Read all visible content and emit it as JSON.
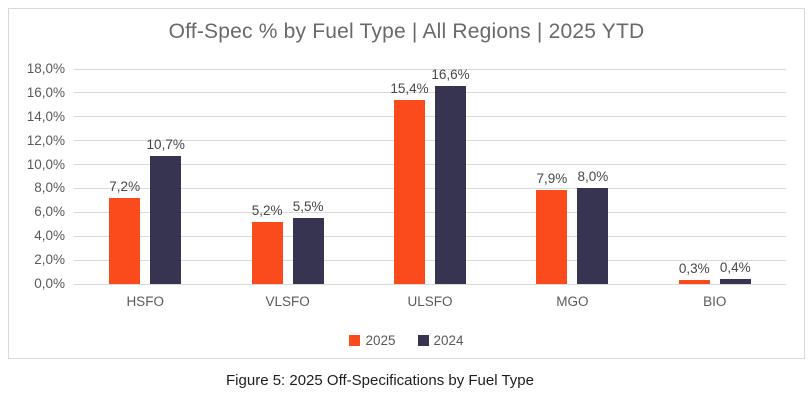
{
  "figure": {
    "title": "Off-Spec % by Fuel Type | All Regions | 2025 YTD",
    "caption": "Figure 5: 2025 Off-Specifications by Fuel Type"
  },
  "chart_data": {
    "type": "bar",
    "title": "Off-Spec % by Fuel Type | All Regions | 2025 YTD",
    "categories": [
      "HSFO",
      "VLSFO",
      "ULSFO",
      "MGO",
      "BIO"
    ],
    "series": [
      {
        "name": "2025",
        "color": "#fb4a1c",
        "values": [
          7.2,
          5.2,
          15.4,
          7.9,
          0.3
        ],
        "labels": [
          "7,2%",
          "5,2%",
          "15,4%",
          "7,9%",
          "0,3%"
        ]
      },
      {
        "name": "2024",
        "color": "#363451",
        "values": [
          10.7,
          5.5,
          16.6,
          8.0,
          0.4
        ],
        "labels": [
          "10,7%",
          "5,5%",
          "16,6%",
          "8,0%",
          "0,4%"
        ]
      }
    ],
    "xlabel": "",
    "ylabel": "",
    "ylim": [
      0,
      18
    ],
    "ytick_step": 2,
    "yticks": [
      {
        "value": 0,
        "label": "0,0%"
      },
      {
        "value": 2,
        "label": "2,0%"
      },
      {
        "value": 4,
        "label": "4,0%"
      },
      {
        "value": 6,
        "label": "6,0%"
      },
      {
        "value": 8,
        "label": "8,0%"
      },
      {
        "value": 10,
        "label": "10,0%"
      },
      {
        "value": 12,
        "label": "12,0%"
      },
      {
        "value": 14,
        "label": "14,0%"
      },
      {
        "value": 16,
        "label": "16,0%"
      },
      {
        "value": 18,
        "label": "18,0%"
      }
    ],
    "grid": true,
    "legend_position": "bottom",
    "value_format": "percent, comma decimal separator"
  }
}
